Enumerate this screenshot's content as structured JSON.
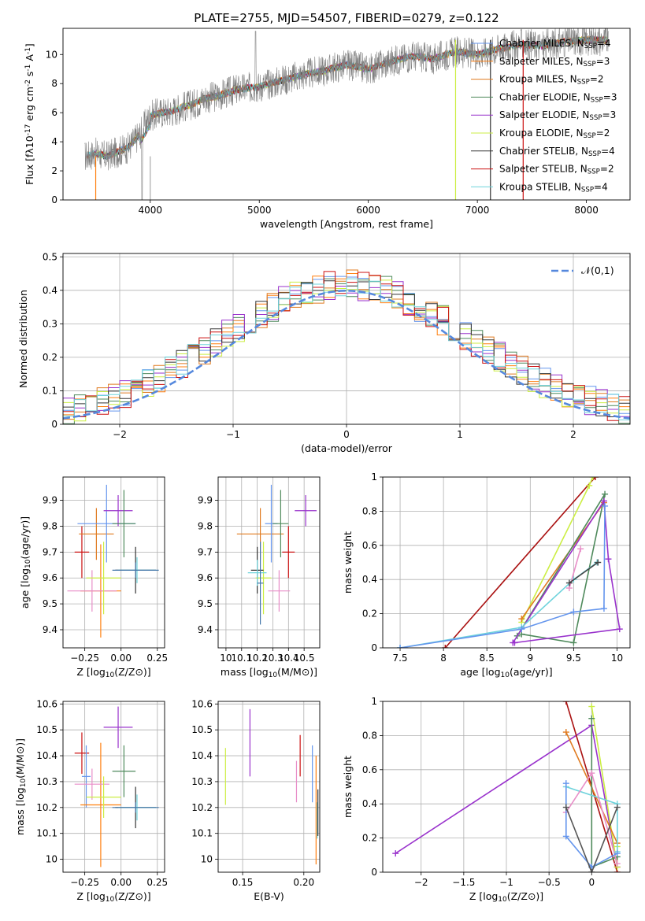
{
  "figure_title": "PLATE=2755, MJD=54507, FIBERID=0279, z=0.122",
  "chart_data": [
    {
      "id": "spectrum",
      "type": "line",
      "title": "PLATE=2755, MJD=54507, FIBERID=0279, z=0.122",
      "xlabel": "wavelength [Angstrom, rest frame]",
      "ylabel": "Flux [f$_\\lambda$10$^{-17}$ erg cm$^{-2}$ s$^{-1}$ A$^{-1}$]",
      "xlim": [
        3200,
        8400
      ],
      "ylim": [
        0,
        11.8
      ],
      "xticks": [
        4000,
        5000,
        6000,
        7000,
        8000
      ],
      "yticks": [
        0,
        2,
        4,
        6,
        8,
        10
      ],
      "grid": false,
      "legend_position": "top-right",
      "data_series": {
        "name": "data",
        "color": "#808080"
      },
      "continuum_points": {
        "x": [
          3400,
          3500,
          3600,
          3700,
          3800,
          3900,
          4000,
          4100,
          4200,
          4300,
          4400,
          4500,
          4600,
          4800,
          5000,
          5200,
          5400,
          5600,
          5800,
          6000,
          6200,
          6400,
          6600,
          6800,
          7000,
          7200,
          7400,
          7600,
          7800,
          8000,
          8200
        ],
        "y": [
          3.0,
          3.2,
          3.0,
          3.3,
          3.6,
          4.5,
          5.8,
          6.0,
          6.1,
          6.4,
          6.6,
          7.0,
          7.1,
          7.6,
          7.8,
          8.2,
          8.6,
          8.9,
          9.3,
          9.0,
          9.5,
          9.9,
          9.7,
          10.2,
          10.0,
          10.4,
          10.7,
          10.6,
          10.9,
          11.0,
          11.0
        ]
      },
      "series": [
        {
          "name": "Chabrier MILES, N$_{SSP}$=4",
          "color": "#6495ed"
        },
        {
          "name": "Salpeter MILES, N$_{SSP}$=3",
          "color": "#ff7f0e"
        },
        {
          "name": "Kroupa MILES, N$_{SSP}$=2",
          "color": "#e07b20"
        },
        {
          "name": "Chabrier ELODIE, N$_{SSP}$=3",
          "color": "#4f8a5c"
        },
        {
          "name": "Salpeter ELODIE, N$_{SSP}$=3",
          "color": "#9932cc"
        },
        {
          "name": "Kroupa ELODIE, N$_{SSP}$=2",
          "color": "#ccee44"
        },
        {
          "name": "Chabrier STELIB, N$_{SSP}$=4",
          "color": "#333333"
        },
        {
          "name": "Salpeter STELIB, N$_{SSP}$=2",
          "color": "#cc1111"
        },
        {
          "name": "Kroupa STELIB, N$_{SSP}$=4",
          "color": "#6fd3dc"
        }
      ]
    },
    {
      "id": "residual_hist",
      "type": "line",
      "xlabel": "(data-model)/error",
      "ylabel": "Normed distribution",
      "xlim": [
        -2.5,
        2.5
      ],
      "ylim": [
        0,
        0.51
      ],
      "xticks": [
        -2,
        -1,
        0,
        1,
        2
      ],
      "yticks": [
        0.0,
        0.1,
        0.2,
        0.3,
        0.4,
        0.5
      ],
      "grid": true,
      "legend_position": "top-right",
      "gaussian": {
        "name": "$\\mathcal{N}(0,1)$",
        "color": "#5588dd",
        "mean": 0,
        "sigma": 1
      },
      "bin_width": 0.1,
      "series_colors": [
        "#6495ed",
        "#ff7f0e",
        "#e07b20",
        "#4f8a5c",
        "#9932cc",
        "#ccee44",
        "#333333",
        "#cc1111",
        "#6fd3dc"
      ]
    },
    {
      "id": "age_vs_Z",
      "type": "scatter",
      "xlabel": "Z [log$_{10}$($Z$/$Z_\\odot$)]",
      "ylabel": "age  [log$_{10}$($age$/$yr$)]",
      "xlim": [
        -0.4,
        0.3
      ],
      "ylim": [
        9.33,
        9.99
      ],
      "xticks": [
        -0.25,
        0.0,
        0.25
      ],
      "xticklabels": [
        "−0.25",
        "0.00",
        "0.25"
      ],
      "yticks": [
        9.4,
        9.5,
        9.6,
        9.7,
        9.8,
        9.9
      ],
      "grid": true,
      "points": [
        {
          "x": -0.27,
          "xerr": 0.05,
          "y": 9.7,
          "yerr": 0.1,
          "color": "#cc1111"
        },
        {
          "x": -0.17,
          "xerr": 0.12,
          "y": 9.77,
          "yerr": 0.1,
          "color": "#e07b20"
        },
        {
          "x": -0.14,
          "xerr": 0.14,
          "y": 9.55,
          "yerr": 0.18,
          "color": "#ff7f0e"
        },
        {
          "x": -0.1,
          "xerr": 0.2,
          "y": 9.81,
          "yerr": 0.15,
          "color": "#6495ed"
        },
        {
          "x": -0.2,
          "xerr": 0.17,
          "y": 9.55,
          "yerr": 0.08,
          "color": "#e88ec8"
        },
        {
          "x": -0.12,
          "xerr": 0.12,
          "y": 9.6,
          "yerr": 0.14,
          "color": "#ccee44"
        },
        {
          "x": -0.02,
          "xerr": 0.1,
          "y": 9.86,
          "yerr": 0.06,
          "color": "#9932cc"
        },
        {
          "x": 0.02,
          "xerr": 0.08,
          "y": 9.81,
          "yerr": 0.13,
          "color": "#4f8a5c"
        },
        {
          "x": 0.1,
          "xerr": 0.14,
          "y": 9.63,
          "yerr": 0.09,
          "color": "#333333"
        },
        {
          "x": 0.11,
          "xerr": 0.13,
          "y": 9.63,
          "yerr": 0.05,
          "color": "#6fd3dc"
        },
        {
          "x": 0.1,
          "xerr": 0.16,
          "y": 9.63,
          "yerr": 0.03,
          "color": "#4477aa"
        }
      ]
    },
    {
      "id": "age_vs_mass",
      "type": "scatter",
      "xlabel": "mass [log$_{10}$($M$/$M_\\odot$)]",
      "ylabel": "",
      "xlim": [
        9.95,
        10.6
      ],
      "ylim": [
        9.33,
        9.99
      ],
      "xticks": [
        10.0,
        10.1,
        10.2,
        10.3,
        10.4,
        10.5
      ],
      "yticks": [
        9.4,
        9.5,
        9.6,
        9.7,
        9.8,
        9.9
      ],
      "grid": true,
      "points": [
        {
          "x": 10.4,
          "xerr": 0.04,
          "y": 9.7,
          "yerr": 0.1,
          "color": "#cc1111"
        },
        {
          "x": 10.22,
          "xerr": 0.15,
          "y": 9.77,
          "yerr": 0.1,
          "color": "#e07b20"
        },
        {
          "x": 10.29,
          "xerr": 0.04,
          "y": 9.81,
          "yerr": 0.15,
          "color": "#6495ed"
        },
        {
          "x": 10.34,
          "xerr": 0.07,
          "y": 9.55,
          "yerr": 0.08,
          "color": "#e88ec8"
        },
        {
          "x": 10.24,
          "xerr": 0.05,
          "y": 9.6,
          "yerr": 0.14,
          "color": "#ccee44"
        },
        {
          "x": 10.51,
          "xerr": 0.07,
          "y": 9.86,
          "yerr": 0.06,
          "color": "#9932cc"
        },
        {
          "x": 10.35,
          "xerr": 0.05,
          "y": 9.81,
          "yerr": 0.13,
          "color": "#4f8a5c"
        },
        {
          "x": 10.2,
          "xerr": 0.04,
          "y": 9.63,
          "yerr": 0.09,
          "color": "#333333"
        },
        {
          "x": 10.2,
          "xerr": 0.06,
          "y": 9.62,
          "yerr": 0.05,
          "color": "#6fd3dc"
        },
        {
          "x": 10.22,
          "xerr": 0.02,
          "y": 9.58,
          "yerr": 0.16,
          "color": "#4477aa"
        }
      ]
    },
    {
      "id": "massweight_vs_age",
      "type": "line",
      "xlabel": "age  [log$_{10}$($age$/$yr$)]",
      "ylabel": "mass weight",
      "xlim": [
        7.3,
        10.15
      ],
      "ylim": [
        0,
        1.0
      ],
      "xticks": [
        7.5,
        8.0,
        8.5,
        9.0,
        9.5,
        10.0
      ],
      "yticks": [
        0.0,
        0.2,
        0.4,
        0.6,
        0.8,
        1.0
      ],
      "grid": true,
      "series": [
        {
          "color": "#aa1111",
          "x": [
            8.02,
            9.75
          ],
          "y": [
            0.0,
            1.0
          ]
        },
        {
          "color": "#ccee44",
          "x": [
            8.9,
            9.68,
            9.72
          ],
          "y": [
            0.15,
            0.95,
            1.0
          ]
        },
        {
          "color": "#e07b20",
          "x": [
            8.9,
            9.85
          ],
          "y": [
            0.17,
            0.85
          ]
        },
        {
          "color": "#4f8a5c",
          "x": [
            8.9,
            9.5,
            9.86,
            8.85
          ],
          "y": [
            0.08,
            0.03,
            0.9,
            0.07
          ]
        },
        {
          "color": "#9932cc",
          "x": [
            8.8,
            9.85,
            9.9,
            10.03,
            8.82
          ],
          "y": [
            0.03,
            0.86,
            0.52,
            0.11,
            0.03
          ]
        },
        {
          "color": "#6fd3dc",
          "x": [
            7.5,
            8.9,
            9.5,
            9.77
          ],
          "y": [
            0.0,
            0.12,
            0.4,
            0.5
          ]
        },
        {
          "color": "#e88ec8",
          "x": [
            9.45,
            9.58
          ],
          "y": [
            0.35,
            0.58
          ]
        },
        {
          "color": "#6495ed",
          "x": [
            7.5,
            8.9,
            9.5,
            9.85,
            9.86
          ],
          "y": [
            0.0,
            0.11,
            0.21,
            0.23,
            0.83
          ]
        },
        {
          "color": "#444444",
          "x": [
            9.45,
            9.78
          ],
          "y": [
            0.38,
            0.5
          ]
        }
      ]
    },
    {
      "id": "mass_vs_Z",
      "type": "scatter",
      "xlabel": "Z [log$_{10}$($Z$/$Z_\\odot$)]",
      "ylabel": "mass [log$_{10}$($M$/$M_\\odot$)]",
      "xlim": [
        -0.4,
        0.3
      ],
      "ylim": [
        9.95,
        10.61
      ],
      "xticks": [
        -0.25,
        0.0,
        0.25
      ],
      "xticklabels": [
        "−0.25",
        "0.00",
        "0.25"
      ],
      "yticks": [
        10.0,
        10.1,
        10.2,
        10.3,
        10.4,
        10.5,
        10.6
      ],
      "grid": true,
      "points": [
        {
          "x": -0.27,
          "xerr": 0.05,
          "y": 10.41,
          "yerr": 0.08,
          "color": "#cc1111"
        },
        {
          "x": -0.24,
          "xerr": 0.03,
          "y": 10.32,
          "yerr": 0.12,
          "color": "#6495ed"
        },
        {
          "x": -0.14,
          "xerr": 0.14,
          "y": 10.21,
          "yerr": 0.24,
          "color": "#ff7f0e"
        },
        {
          "x": -0.2,
          "xerr": 0.12,
          "y": 10.29,
          "yerr": 0.06,
          "color": "#e88ec8"
        },
        {
          "x": -0.12,
          "xerr": 0.12,
          "y": 10.24,
          "yerr": 0.08,
          "color": "#ccee44"
        },
        {
          "x": -0.02,
          "xerr": 0.1,
          "y": 10.51,
          "yerr": 0.08,
          "color": "#9932cc"
        },
        {
          "x": 0.02,
          "xerr": 0.08,
          "y": 10.34,
          "yerr": 0.1,
          "color": "#4f8a5c"
        },
        {
          "x": 0.1,
          "xerr": 0.14,
          "y": 10.2,
          "yerr": 0.08,
          "color": "#333333"
        },
        {
          "x": 0.11,
          "xerr": 0.13,
          "y": 10.2,
          "yerr": 0.05,
          "color": "#6fd3dc"
        },
        {
          "x": 0.1,
          "xerr": 0.16,
          "y": 10.2,
          "yerr": 0.02,
          "color": "#4477aa"
        }
      ]
    },
    {
      "id": "mass_vs_ebv",
      "type": "scatter",
      "xlabel": "E(B-V)",
      "ylabel": "",
      "xlim": [
        0.13,
        0.213
      ],
      "ylim": [
        9.95,
        10.61
      ],
      "xticks": [
        0.15,
        0.2
      ],
      "xticklabels": [
        "0.15",
        "0.20"
      ],
      "yticks": [
        10.0,
        10.1,
        10.2,
        10.3,
        10.4,
        10.5,
        10.6
      ],
      "grid": true,
      "points": [
        {
          "x": 0.136,
          "y": 10.32,
          "yerr": 0.11,
          "color": "#ccee44"
        },
        {
          "x": 0.156,
          "y": 10.45,
          "yerr": 0.13,
          "color": "#9932cc"
        },
        {
          "x": 0.194,
          "y": 10.3,
          "yerr": 0.08,
          "color": "#e88ec8"
        },
        {
          "x": 0.197,
          "y": 10.4,
          "yerr": 0.08,
          "color": "#cc1111"
        },
        {
          "x": 0.207,
          "y": 10.33,
          "yerr": 0.11,
          "color": "#6495ed"
        },
        {
          "x": 0.21,
          "y": 10.19,
          "yerr": 0.21,
          "color": "#ff7f0e"
        },
        {
          "x": 0.211,
          "y": 10.15,
          "yerr": 0.07,
          "color": "#6fd3dc"
        },
        {
          "x": 0.2115,
          "y": 10.18,
          "yerr": 0.09,
          "color": "#333333"
        }
      ]
    },
    {
      "id": "massweight_vs_Z",
      "type": "line",
      "xlabel": "Z [log$_{10}$($Z$/$Z_\\odot$)]",
      "ylabel": "mass weight",
      "xlim": [
        -2.45,
        0.45
      ],
      "ylim": [
        0,
        1.0
      ],
      "xticks": [
        -2.0,
        -1.5,
        -1.0,
        -0.5,
        0.0
      ],
      "yticks": [
        0.0,
        0.2,
        0.4,
        0.6,
        0.8,
        1.0
      ],
      "grid": true,
      "series": [
        {
          "color": "#9932cc",
          "x": [
            -2.3,
            0.0,
            0.3
          ],
          "y": [
            0.11,
            0.86,
            0.03
          ]
        },
        {
          "color": "#aa1111",
          "x": [
            -0.3,
            0.3
          ],
          "y": [
            1.0,
            0.0
          ]
        },
        {
          "color": "#ccee44",
          "x": [
            0.0,
            0.3,
            0.3
          ],
          "y": [
            0.97,
            0.03,
            0.15
          ]
        },
        {
          "color": "#e07b20",
          "x": [
            -0.3,
            0.3
          ],
          "y": [
            0.82,
            0.17
          ]
        },
        {
          "color": "#4f8a5c",
          "x": [
            0.0,
            0.0,
            0.3
          ],
          "y": [
            0.9,
            0.03,
            0.09
          ]
        },
        {
          "color": "#6fd3dc",
          "x": [
            -0.3,
            0.3,
            0.3
          ],
          "y": [
            0.5,
            0.4,
            0.12
          ]
        },
        {
          "color": "#e88ec8",
          "x": [
            -0.3,
            0.0,
            0.3
          ],
          "y": [
            0.35,
            0.58,
            0.05
          ]
        },
        {
          "color": "#6495ed",
          "x": [
            -0.3,
            -0.3,
            0.0,
            0.3
          ],
          "y": [
            0.52,
            0.21,
            0.03,
            0.11
          ]
        },
        {
          "color": "#555555",
          "x": [
            -0.3,
            0.0,
            0.3
          ],
          "y": [
            0.38,
            0.0,
            0.38
          ]
        }
      ]
    }
  ]
}
